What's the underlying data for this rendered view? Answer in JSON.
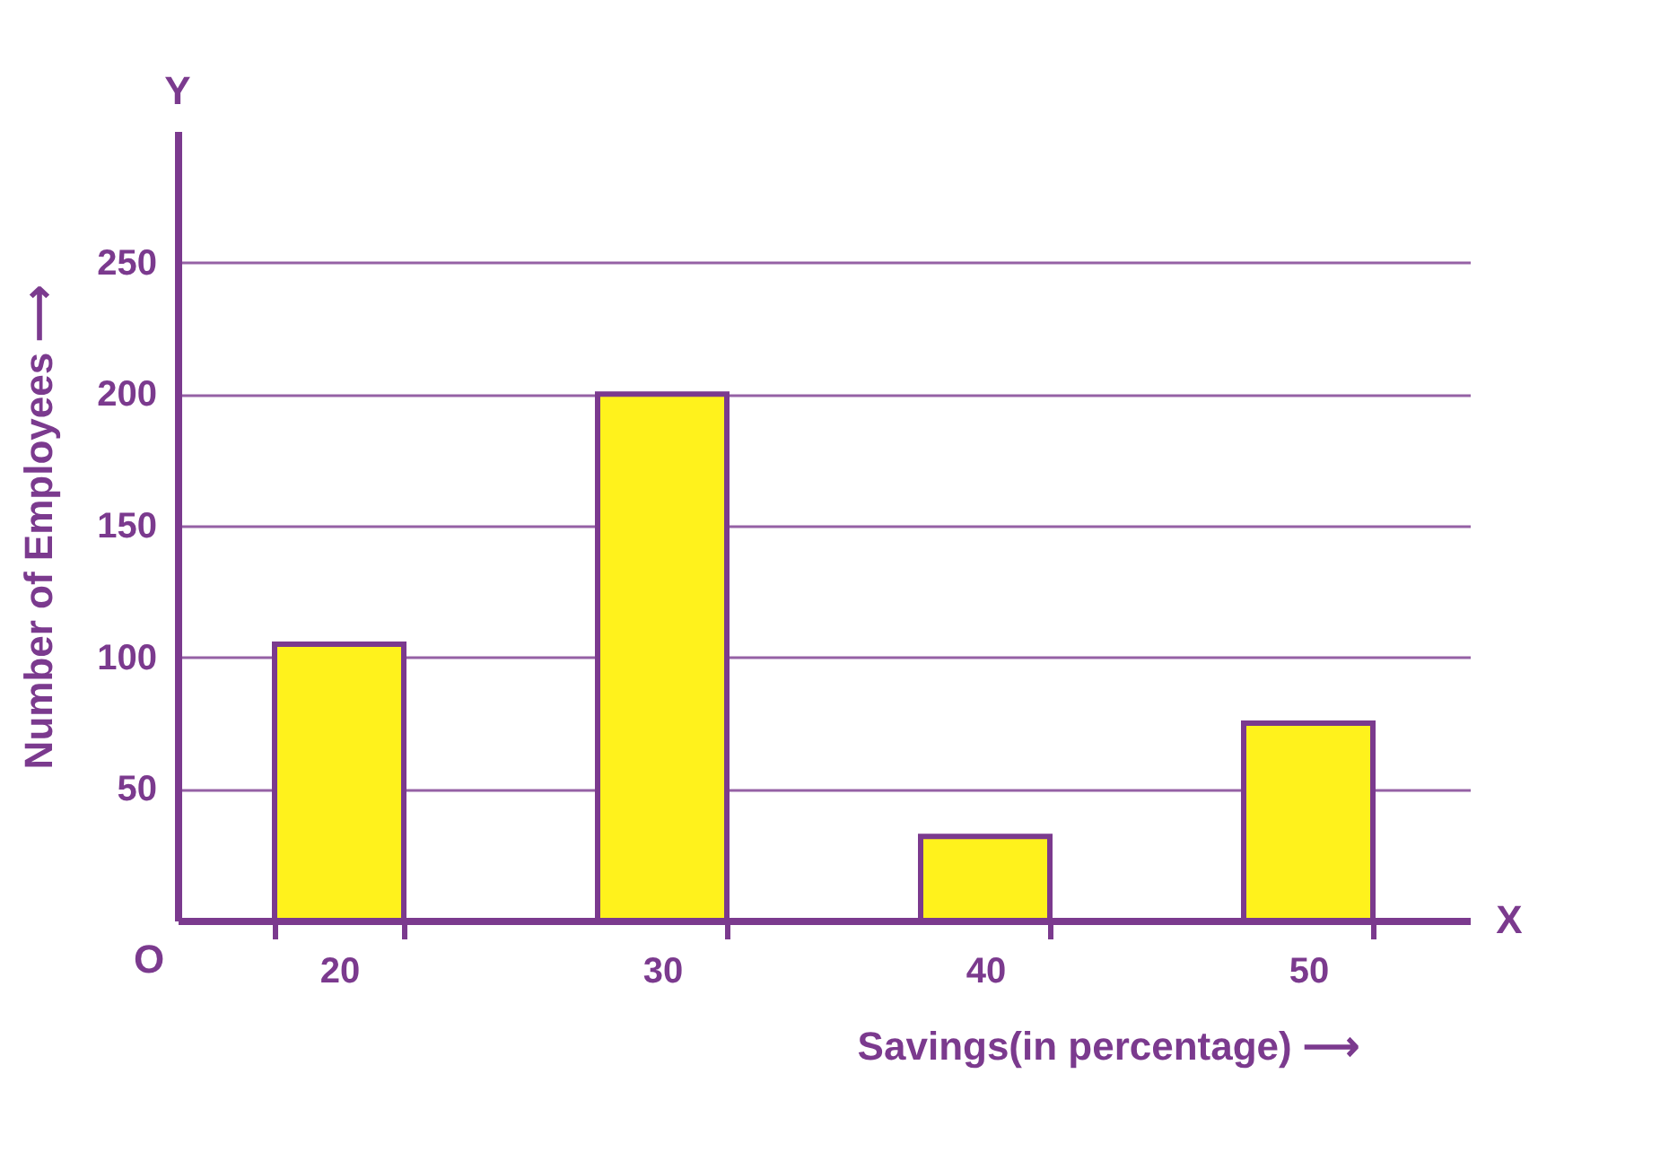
{
  "chart_data": {
    "type": "bar",
    "xlabel": "Savings(in percentage) ⟶",
    "ylabel": "Number of Employees ⟶",
    "categories": [
      "20",
      "30",
      "40",
      "50"
    ],
    "series": [
      {
        "color": "#fff21c",
        "values": [
          105,
          200,
          32,
          75
        ]
      }
    ],
    "ylim": [
      0,
      300
    ],
    "yticks": [
      50,
      100,
      150,
      200,
      250
    ],
    "grid": "y",
    "annotations": [
      "Y",
      "X",
      "O"
    ]
  }
}
